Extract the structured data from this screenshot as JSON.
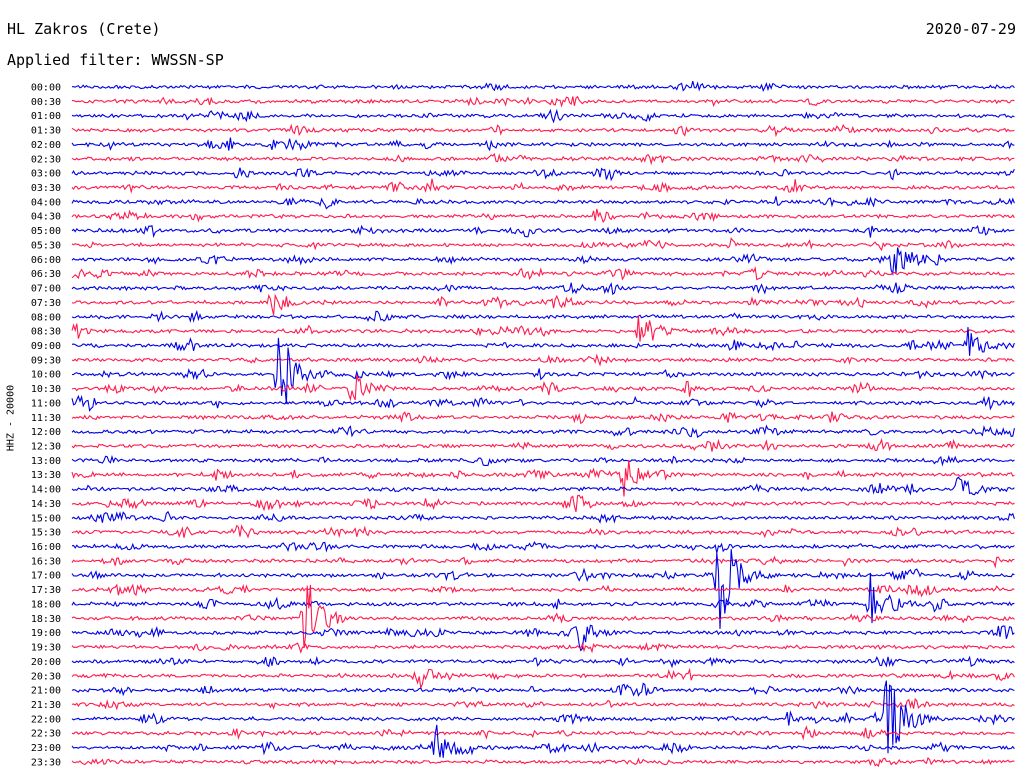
{
  "header": {
    "station": "HL Zakros (Crete)",
    "date": "2020-07-29",
    "filter": "Applied filter: WWSSN-SP"
  },
  "channel_label": "HHZ - 20000",
  "chart_data": {
    "type": "line",
    "chart_kind": "helicorder",
    "row_interval_minutes": 30,
    "trace_colors": [
      "#0000e6",
      "#ff1a4d"
    ],
    "row_labels": [
      "00:00",
      "00:30",
      "01:00",
      "01:30",
      "02:00",
      "02:30",
      "03:00",
      "03:30",
      "04:00",
      "04:30",
      "05:00",
      "05:30",
      "06:00",
      "06:30",
      "07:00",
      "07:30",
      "08:00",
      "08:30",
      "09:00",
      "09:30",
      "10:00",
      "10:30",
      "11:00",
      "11:30",
      "12:00",
      "12:30",
      "13:00",
      "13:30",
      "14:00",
      "14:30",
      "15:00",
      "15:30",
      "16:00",
      "16:30",
      "17:00",
      "17:30",
      "18:00",
      "18:30",
      "19:00",
      "19:30",
      "20:00",
      "20:30",
      "21:00",
      "21:30",
      "22:00",
      "22:30",
      "23:00",
      "23:30"
    ],
    "events": [
      {
        "row": "10:00",
        "minute": 6.5,
        "relative_amplitude": 2.6
      },
      {
        "row": "10:30",
        "minute": 8.8,
        "relative_amplitude": 0.9
      },
      {
        "row": "17:00",
        "minute": 20.5,
        "relative_amplitude": 2.3
      },
      {
        "row": "18:00",
        "minute": 25.3,
        "relative_amplitude": 1.6
      },
      {
        "row": "18:30",
        "minute": 7.3,
        "relative_amplitude": 2.4
      },
      {
        "row": "22:00",
        "minute": 25.8,
        "relative_amplitude": 2.6
      },
      {
        "row": "23:00",
        "minute": 11.5,
        "relative_amplitude": 1.2
      },
      {
        "row": "09:00",
        "minute": 28.4,
        "relative_amplitude": 0.8
      },
      {
        "row": "14:00",
        "minute": 28.1,
        "relative_amplitude": 0.7
      },
      {
        "row": "13:30",
        "minute": 17.5,
        "relative_amplitude": 0.9
      },
      {
        "row": "08:30",
        "minute": 18.0,
        "relative_amplitude": 0.9
      },
      {
        "row": "06:00",
        "minute": 26.0,
        "relative_amplitude": 0.8
      },
      {
        "row": "07:30",
        "minute": 6.3,
        "relative_amplitude": 0.7
      },
      {
        "row": "19:00",
        "minute": 16.1,
        "relative_amplitude": 0.6
      }
    ]
  }
}
